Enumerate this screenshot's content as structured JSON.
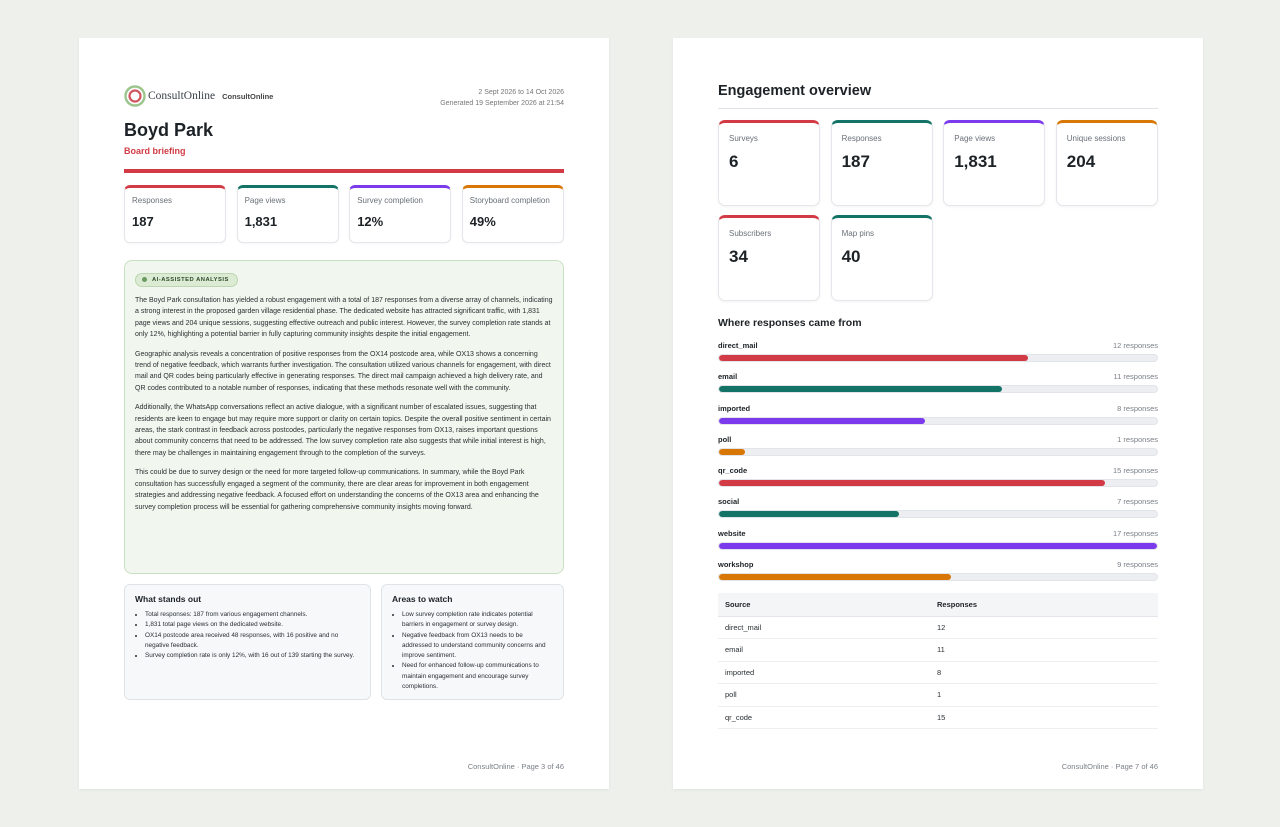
{
  "left_page": {
    "logo_text": "ConsultOnline",
    "org_name": "ConsultOnline",
    "date_range": "2 Sept 2026 to 14 Oct 2026",
    "generated": "Generated 19 September 2026 at 21:54",
    "title": "Boyd Park",
    "subtitle": "Board briefing",
    "kpis": [
      {
        "label": "Responses",
        "value": "187",
        "color": "#d23b45"
      },
      {
        "label": "Page views",
        "value": "1,831",
        "color": "#137366"
      },
      {
        "label": "Survey completion",
        "value": "12%",
        "color": "#7c3aed"
      },
      {
        "label": "Storyboard completion",
        "value": "49%",
        "color": "#d97706"
      }
    ],
    "ai": {
      "badge": "AI-ASSISTED ANALYSIS",
      "paragraphs": [
        "The Boyd Park consultation has yielded a robust engagement with a total of 187 responses from a diverse array of channels, indicating a strong interest in the proposed garden village residential phase. The dedicated website has attracted significant traffic, with 1,831 page views and 204 unique sessions, suggesting effective outreach and public interest. However, the survey completion rate stands at only 12%, highlighting a potential barrier in fully capturing community insights despite the initial engagement.",
        "Geographic analysis reveals a concentration of positive responses from the OX14 postcode area, while OX13 shows a concerning trend of negative feedback, which warrants further investigation. The consultation utilized various channels for engagement, with direct mail and QR codes being particularly effective in generating responses. The direct mail campaign achieved a high delivery rate, and QR codes contributed to a notable number of responses, indicating that these methods resonate well with the community.",
        "Additionally, the WhatsApp conversations reflect an active dialogue, with a significant number of escalated issues, suggesting that residents are keen to engage but may require more support or clarity on certain topics. Despite the overall positive sentiment in certain areas, the stark contrast in feedback across postcodes, particularly the negative responses from OX13, raises important questions about community concerns that need to be addressed. The low survey completion rate also suggests that while initial interest is high, there may be challenges in maintaining engagement through to the completion of the surveys.",
        "This could be due to survey design or the need for more targeted follow-up communications. In summary, while the Boyd Park consultation has successfully engaged a segment of the community, there are clear areas for improvement in both engagement strategies and addressing negative feedback. A focused effort on understanding the concerns of the OX13 area and enhancing the survey completion process will be essential for gathering comprehensive community insights moving forward."
      ]
    },
    "standout": {
      "title": "What stands out",
      "items": [
        "Total responses: 187 from various engagement channels.",
        "1,831 total page views on the dedicated website.",
        "OX14 postcode area received 48 responses, with 16 positive and no negative feedback.",
        "Survey completion rate is only 12%, with 16 out of 139 starting the survey."
      ]
    },
    "watch": {
      "title": "Areas to watch",
      "items": [
        "Low survey completion rate indicates potential barriers in engagement or survey design.",
        "Negative feedback from OX13 needs to be addressed to understand community concerns and improve sentiment.",
        "Need for enhanced follow-up communications to maintain engagement and encourage survey completions."
      ]
    },
    "footer": "ConsultOnline · Page 3 of 46"
  },
  "right_page": {
    "title": "Engagement overview",
    "kpis": [
      {
        "label": "Surveys",
        "value": "6",
        "color": "#d23b45"
      },
      {
        "label": "Responses",
        "value": "187",
        "color": "#137366"
      },
      {
        "label": "Page views",
        "value": "1,831",
        "color": "#7c3aed"
      },
      {
        "label": "Unique sessions",
        "value": "204",
        "color": "#d97706"
      },
      {
        "label": "Subscribers",
        "value": "34",
        "color": "#d23b45"
      },
      {
        "label": "Map pins",
        "value": "40",
        "color": "#137366"
      }
    ],
    "sources_title": "Where responses came from",
    "sources": [
      {
        "name": "direct_mail",
        "count_label": "12 responses",
        "value": 12,
        "color": "#d23b45"
      },
      {
        "name": "email",
        "count_label": "11 responses",
        "value": 11,
        "color": "#137366"
      },
      {
        "name": "imported",
        "count_label": "8 responses",
        "value": 8,
        "color": "#7c3aed"
      },
      {
        "name": "poll",
        "count_label": "1 responses",
        "value": 1,
        "color": "#d97706"
      },
      {
        "name": "qr_code",
        "count_label": "15 responses",
        "value": 15,
        "color": "#d23b45"
      },
      {
        "name": "social",
        "count_label": "7 responses",
        "value": 7,
        "color": "#137366"
      },
      {
        "name": "website",
        "count_label": "17 responses",
        "value": 17,
        "color": "#7c3aed"
      },
      {
        "name": "workshop",
        "count_label": "9 responses",
        "value": 9,
        "color": "#d97706"
      }
    ],
    "table": {
      "headers": [
        "Source",
        "Responses"
      ],
      "rows": [
        [
          "direct_mail",
          "12"
        ],
        [
          "email",
          "11"
        ],
        [
          "imported",
          "8"
        ],
        [
          "poll",
          "1"
        ],
        [
          "qr_code",
          "15"
        ]
      ]
    },
    "footer": "ConsultOnline · Page 7 of 46"
  }
}
